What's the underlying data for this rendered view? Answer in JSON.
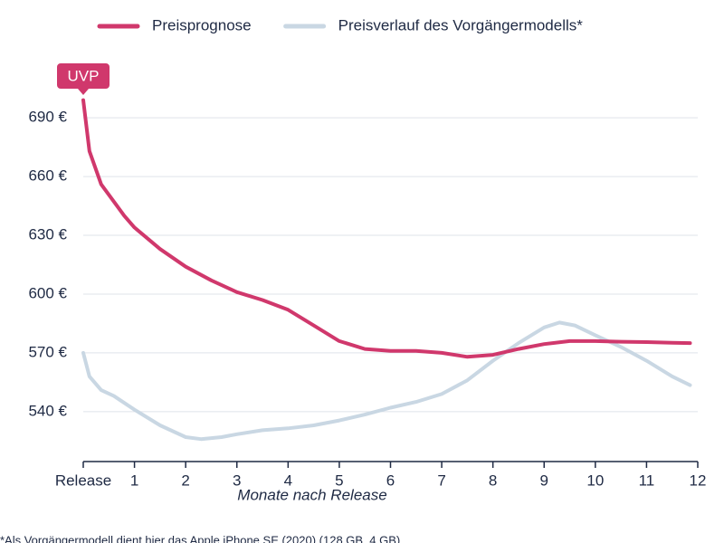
{
  "chart_data": {
    "type": "line",
    "x_label": "Monate nach Release",
    "annotation": "UVP",
    "footnote": "*Als Vorgängermodell dient hier das Apple iPhone SE (2020) (128 GB, 4 GB)",
    "xlim": [
      0,
      12
    ],
    "xticks": [
      {
        "value": 0,
        "label": "Release"
      },
      1,
      2,
      3,
      4,
      5,
      6,
      7,
      8,
      9,
      10,
      11,
      12
    ],
    "ylim": [
      515,
      715
    ],
    "yticks": [
      {
        "value": 540,
        "label": "540 €"
      },
      {
        "value": 570,
        "label": "570 €"
      },
      {
        "value": 600,
        "label": "600 €"
      },
      {
        "value": 630,
        "label": "630 €"
      },
      {
        "value": 660,
        "label": "660 €"
      },
      {
        "value": 690,
        "label": "690 €"
      }
    ],
    "grid": true,
    "series": [
      {
        "name": "Preisprognose",
        "color": "#d0386c",
        "x": [
          0,
          0.12,
          0.35,
          0.8,
          1,
          1.5,
          2,
          2.5,
          3,
          3.5,
          4,
          4.5,
          5,
          5.5,
          6,
          6.5,
          7,
          7.5,
          8,
          8.5,
          9,
          9.5,
          10,
          10.5,
          11,
          11.5,
          11.85
        ],
        "values": [
          699,
          673,
          656,
          640,
          634,
          623,
          614,
          607,
          601,
          597,
          592,
          584,
          576,
          572,
          571,
          571,
          570,
          568,
          569,
          572,
          574.5,
          576,
          576,
          575.7,
          575.5,
          575.2,
          575
        ]
      },
      {
        "name": "Preisverlauf des Vorgängermodells*",
        "color": "#c9d7e3",
        "x": [
          0,
          0.12,
          0.35,
          0.6,
          1,
          1.5,
          2,
          2.3,
          2.7,
          3,
          3.5,
          4,
          4.5,
          5,
          5.5,
          6,
          6.5,
          7,
          7.5,
          8,
          8.5,
          9,
          9.3,
          9.6,
          10,
          10.5,
          11,
          11.5,
          11.85
        ],
        "values": [
          570,
          558,
          551,
          548,
          541,
          533,
          527,
          526,
          527,
          528.5,
          530.5,
          531.5,
          533,
          535.5,
          538.5,
          542,
          545,
          549,
          556,
          566,
          575,
          583,
          585.5,
          584,
          579,
          573,
          566,
          558,
          553.5
        ]
      }
    ]
  }
}
